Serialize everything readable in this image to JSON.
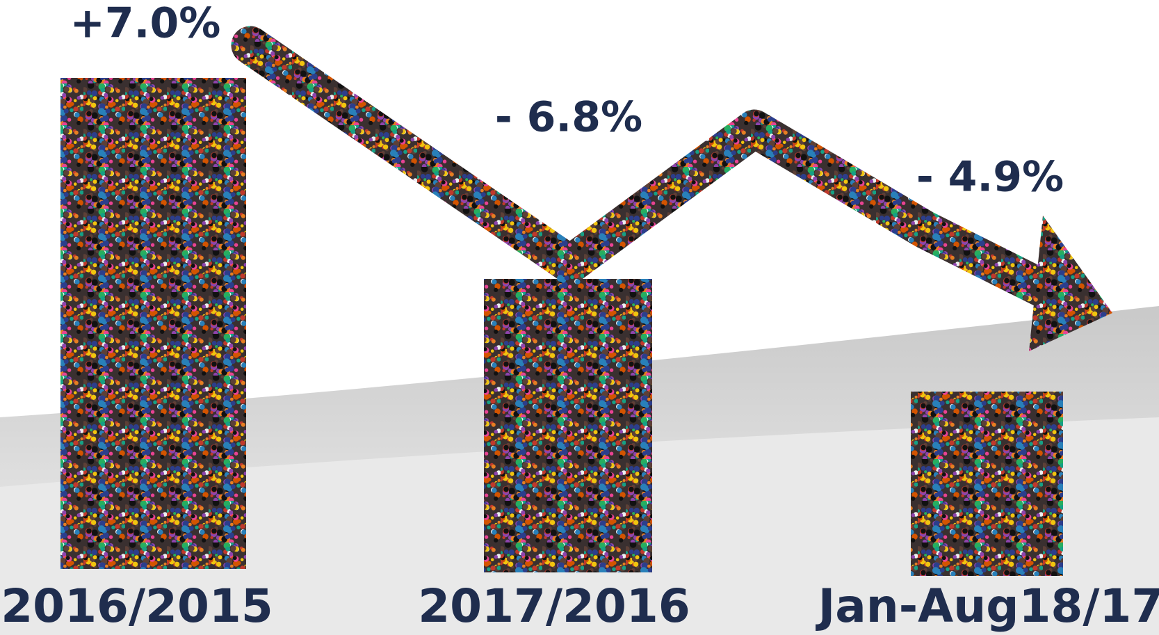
{
  "periods": [
    {
      "label": "2016/2015",
      "change": "+7.0%"
    },
    {
      "label": "2017/2016",
      "change": "- 6.8%"
    },
    {
      "label": "Jan-Aug18/17",
      "change": "- 4.9%"
    }
  ]
}
